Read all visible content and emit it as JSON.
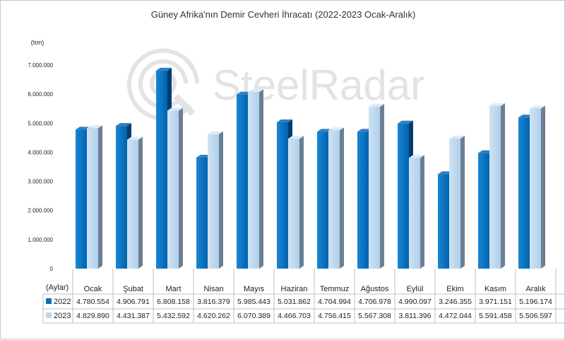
{
  "watermark": {
    "text": "SteelRadar"
  },
  "chart_data": {
    "type": "bar",
    "title": "Güney Afrika'nın Demir Cevheri İhracatı (2022-2023 Ocak-Aralık)",
    "ylabel": "(ton)",
    "xlabel": "(Aylar)",
    "ylim": [
      0,
      7000000
    ],
    "yticks": [
      "0",
      "1.000.000",
      "2.000.000",
      "3.000.000",
      "4.000.000",
      "5.000.000",
      "6.000.000",
      "7.000.000"
    ],
    "categories": [
      "Ocak",
      "Şubat",
      "Mart",
      "Nisan",
      "Mayıs",
      "Haziran",
      "Temmuz",
      "Ağustos",
      "Eylül",
      "Ekim",
      "Kasım",
      "Aralık"
    ],
    "series": [
      {
        "name": "2022",
        "color": "#0070c0",
        "values": [
          4780554,
          4906791,
          6808158,
          3816379,
          5985443,
          5031862,
          4704994,
          4706978,
          4990097,
          3246355,
          3971151,
          5196174
        ],
        "labels": [
          "4.780.554",
          "4.906.791",
          "6.808.158",
          "3.816.379",
          "5.985.443",
          "5.031.862",
          "4.704.994",
          "4.706.978",
          "4.990.097",
          "3.246.355",
          "3.971.151",
          "5.196.174"
        ]
      },
      {
        "name": "2023",
        "color": "#bdd7ee",
        "values": [
          4829890,
          4431387,
          5432592,
          4620262,
          6070389,
          4466703,
          4756415,
          5567308,
          3811396,
          4472044,
          5591458,
          5506597
        ],
        "labels": [
          "4.829.890",
          "4.431.387",
          "5.432.592",
          "4.620.262",
          "6.070.389",
          "4.466.703",
          "4.756.415",
          "5.567.308",
          "3.811.396",
          "4.472.044",
          "5.591.458",
          "5.506.597"
        ]
      }
    ],
    "grid": false,
    "legend": "table-bottom"
  }
}
